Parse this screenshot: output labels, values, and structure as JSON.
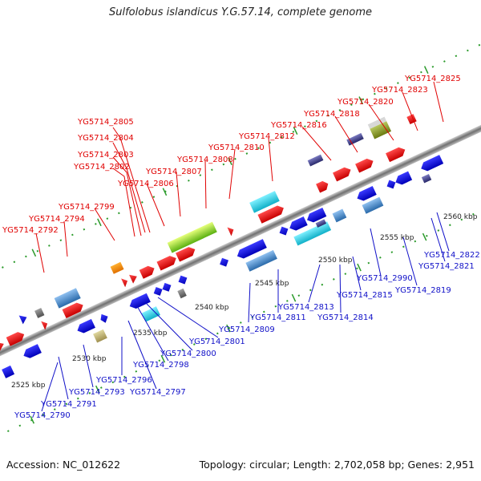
{
  "title": "Sulfolobus islandicus Y.G.57.14, complete genome",
  "accession": "Accession: NC_012622",
  "topology": "Topology: circular; Length: 2,702,058 bp; Genes: 2,951",
  "ticks": [
    "2525 kbp",
    "2530 kbp",
    "2535 kbp",
    "2540 kbp",
    "2545 kbp",
    "2550 kbp",
    "2555 kbp",
    "2560 kbp"
  ],
  "top_labels": [
    "YG5714_2825",
    "YG5714_2823",
    "YG5714_2820",
    "YG5714_2818",
    "YG5714_2816",
    "YG5714_2812",
    "YG5714_2810",
    "YG5714_2808",
    "YG5714_2807",
    "YG5714_2806",
    "YG5714_2805",
    "YG5714_2804",
    "YG5714_2803",
    "YG5714_2802",
    "YG5714_2799",
    "YG5714_2794",
    "YG5714_2792"
  ],
  "bottom_labels": [
    "YG5714_2809",
    "YG5714_2801",
    "YG5714_2800",
    "YG5714_2798",
    "YG5714_2797",
    "YG5714_2796",
    "YG5714_2793",
    "YG5714_2791",
    "YG5714_2790",
    "YG5714_2811",
    "YG5714_2813",
    "YG5714_2814",
    "YG5714_2815",
    "YG5714_2990",
    "YG5714_2819",
    "YG5714_2821",
    "YG5714_2822"
  ],
  "colors": {
    "forward_gene": "#ee1111",
    "reverse_gene": "#1818e8",
    "rna": "#33ccdd",
    "pseudo": "#4a86c0",
    "label_top": "#e00000",
    "label_bottom": "#1010c8",
    "backbone": "#8c8c8c",
    "minor_tick": "#2a9a2a"
  }
}
